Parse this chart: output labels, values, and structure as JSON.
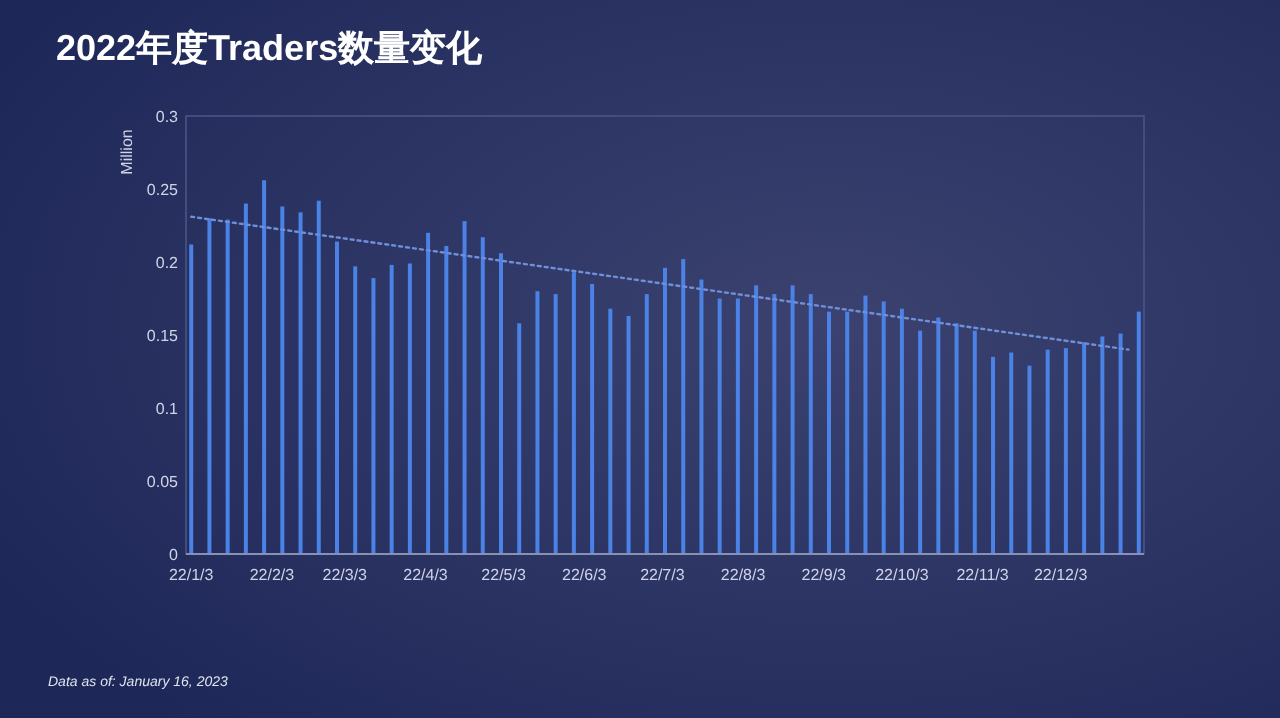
{
  "chart_data": {
    "type": "bar",
    "title": "2022年度Traders数量变化",
    "ylabel": "Million",
    "x": [
      "2022-01-03",
      "2022-01-10",
      "2022-01-17",
      "2022-01-24",
      "2022-01-31",
      "2022-02-07",
      "2022-02-14",
      "2022-02-21",
      "2022-02-28",
      "2022-03-07",
      "2022-03-14",
      "2022-03-21",
      "2022-03-28",
      "2022-04-04",
      "2022-04-11",
      "2022-04-18",
      "2022-04-25",
      "2022-05-02",
      "2022-05-09",
      "2022-05-16",
      "2022-05-23",
      "2022-05-30",
      "2022-06-06",
      "2022-06-13",
      "2022-06-20",
      "2022-06-27",
      "2022-07-04",
      "2022-07-11",
      "2022-07-18",
      "2022-07-25",
      "2022-08-01",
      "2022-08-08",
      "2022-08-15",
      "2022-08-22",
      "2022-08-29",
      "2022-09-05",
      "2022-09-12",
      "2022-09-19",
      "2022-09-26",
      "2022-10-03",
      "2022-10-10",
      "2022-10-17",
      "2022-10-24",
      "2022-10-31",
      "2022-11-07",
      "2022-11-14",
      "2022-11-21",
      "2022-11-28",
      "2022-12-05",
      "2022-12-12",
      "2022-12-19",
      "2022-12-26",
      "2023-01-02"
    ],
    "series": [
      {
        "color": "#4a82e6",
        "values": [
          0.212,
          0.23,
          0.229,
          0.24,
          0.256,
          0.238,
          0.234,
          0.242,
          0.214,
          0.197,
          0.189,
          0.198,
          0.199,
          0.22,
          0.211,
          0.228,
          0.217,
          0.206,
          0.158,
          0.18,
          0.178,
          0.193,
          0.185,
          0.168,
          0.163,
          0.178,
          0.196,
          0.202,
          0.188,
          0.175,
          0.175,
          0.184,
          0.178,
          0.184,
          0.178,
          0.166,
          0.166,
          0.177,
          0.173,
          0.168,
          0.153,
          0.162,
          0.158,
          0.153,
          0.135,
          0.138,
          0.129,
          0.14,
          0.141,
          0.145,
          0.149,
          0.151,
          0.166
        ]
      },
      {
        "type": "line",
        "color": "#6f8fd8",
        "line_style": "dotted",
        "x": [
          "2022-01-03",
          "2022-12-29"
        ],
        "values": [
          0.231,
          0.14
        ]
      }
    ],
    "xlim": [
      "2022-01-01",
      "2023-01-04"
    ],
    "xticks": [
      {
        "value": "2022-01-03",
        "label": "22/1/3"
      },
      {
        "value": "2022-02-03",
        "label": "22/2/3"
      },
      {
        "value": "2022-03-03",
        "label": "22/3/3"
      },
      {
        "value": "2022-04-03",
        "label": "22/4/3"
      },
      {
        "value": "2022-05-03",
        "label": "22/5/3"
      },
      {
        "value": "2022-06-03",
        "label": "22/6/3"
      },
      {
        "value": "2022-07-03",
        "label": "22/7/3"
      },
      {
        "value": "2022-08-03",
        "label": "22/8/3"
      },
      {
        "value": "2022-09-03",
        "label": "22/9/3"
      },
      {
        "value": "2022-10-03",
        "label": "22/10/3"
      },
      {
        "value": "2022-11-03",
        "label": "22/11/3"
      },
      {
        "value": "2022-12-03",
        "label": "22/12/3"
      }
    ],
    "ylim": [
      0,
      0.3
    ],
    "yticks": [
      0,
      {
        "value": 0.05,
        "label": "0.05"
      },
      {
        "value": 0.1,
        "label": "0.1"
      },
      {
        "value": 0.15,
        "label": "0.15"
      },
      {
        "value": 0.2,
        "label": "0.2"
      },
      {
        "value": 0.25,
        "label": "0.25"
      },
      {
        "value": 0.3,
        "label": "0.3"
      }
    ],
    "grid": false,
    "annotations": [
      "Data as of: January 16, 2023"
    ]
  }
}
